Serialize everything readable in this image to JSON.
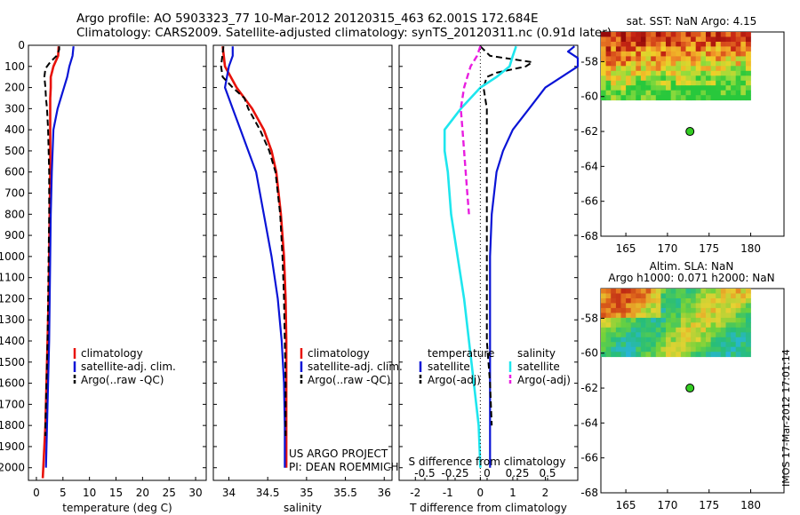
{
  "header": {
    "line1": "Argo profile: AO 5903323_77 10-Mar-2012 20120315_463 62.001S 172.684E",
    "line2": "Climatology: CARS2009. Satellite-adjusted climatology: synTS_20120311.nc (0.91d later)"
  },
  "colors": {
    "climatology": "#e8120a",
    "satellite": "#0a14d6",
    "argo": "#000000",
    "sat_s": "#1ee6ee",
    "argo_s": "#e81ee0",
    "marker": "#33cc22"
  },
  "chart_data": [
    {
      "type": "line",
      "id": "temperature",
      "xlabel": "temperature (deg C)",
      "ylabel": "",
      "xlim": [
        -1.5,
        32
      ],
      "ylim": [
        2060,
        0
      ],
      "xticks": [
        0,
        5,
        10,
        15,
        20,
        25,
        30
      ],
      "yticks": [
        0,
        100,
        200,
        300,
        400,
        500,
        600,
        700,
        800,
        900,
        1000,
        1100,
        1200,
        1300,
        1400,
        1500,
        1600,
        1700,
        1800,
        1900,
        2000
      ],
      "legend": [
        "climatology",
        "satellite-adj. clim.",
        "Argo(..raw -QC)"
      ],
      "series": [
        {
          "style": "clim",
          "depth": [
            5,
            50,
            100,
            150,
            200,
            250,
            300,
            400,
            600,
            800,
            1000,
            1200,
            1400,
            1600,
            1800,
            2000,
            2050
          ],
          "values": [
            4.2,
            4.1,
            3.2,
            2.7,
            2.7,
            2.6,
            2.6,
            2.6,
            2.6,
            2.5,
            2.4,
            2.3,
            2.1,
            1.9,
            1.7,
            1.3,
            1.2
          ]
        },
        {
          "style": "sat",
          "depth": [
            5,
            50,
            100,
            150,
            200,
            250,
            300,
            400,
            600,
            800,
            1000,
            1200,
            1400,
            1600,
            1800,
            2000
          ],
          "values": [
            7,
            6.8,
            6.2,
            5.8,
            5.2,
            4.6,
            4.0,
            3.2,
            2.9,
            2.7,
            2.6,
            2.5,
            2.4,
            2.2,
            2.0,
            1.8
          ]
        },
        {
          "style": "argo",
          "depth": [
            5,
            20,
            50,
            80,
            110,
            150,
            200,
            250,
            300,
            400,
            600,
            800,
            1000,
            1200,
            1400,
            1600,
            1800,
            1850
          ],
          "values": [
            4.3,
            4.3,
            3.8,
            2.6,
            1.7,
            1.5,
            1.7,
            1.8,
            2.0,
            2.2,
            2.4,
            2.4,
            2.3,
            2.2,
            2.1,
            1.9,
            1.7,
            1.7
          ]
        }
      ]
    },
    {
      "type": "line",
      "id": "salinity",
      "xlabel": "salinity",
      "ylabel": "",
      "xlim": [
        33.8,
        36.1
      ],
      "ylim": [
        2060,
        0
      ],
      "xticks": [
        "34",
        "34.5",
        "35",
        "35.5",
        "36"
      ],
      "legend": [
        "climatology",
        "satellite-adj. clim.",
        "Argo(..raw -QC)"
      ],
      "annotation": [
        "US ARGO PROJECT",
        "PI: DEAN ROEMMICH"
      ],
      "series": [
        {
          "style": "clim",
          "depth": [
            5,
            100,
            200,
            300,
            400,
            500,
            600,
            800,
            1000,
            1200,
            1400,
            1600,
            1800,
            2000
          ],
          "values": [
            33.92,
            33.95,
            34.1,
            34.3,
            34.45,
            34.55,
            34.61,
            34.67,
            34.71,
            34.73,
            34.74,
            34.74,
            34.74,
            34.74
          ]
        },
        {
          "style": "sat",
          "depth": [
            5,
            50,
            100,
            200,
            300,
            400,
            500,
            600,
            800,
            1000,
            1200,
            1400,
            1600,
            1800,
            2000
          ],
          "values": [
            34.05,
            34.05,
            34.0,
            33.95,
            34.05,
            34.15,
            34.25,
            34.35,
            34.45,
            34.55,
            34.63,
            34.68,
            34.71,
            34.72,
            34.72
          ]
        },
        {
          "style": "argo",
          "depth": [
            5,
            100,
            150,
            200,
            250,
            300,
            400,
            500,
            600,
            800,
            1000,
            1200,
            1400,
            1600,
            1800,
            1850
          ],
          "values": [
            33.93,
            33.9,
            33.92,
            34.05,
            34.2,
            34.25,
            34.4,
            34.52,
            34.6,
            34.66,
            34.69,
            34.71,
            34.72,
            34.73,
            34.73,
            34.73
          ]
        }
      ]
    },
    {
      "type": "line",
      "id": "difference",
      "xlabel": "T difference from climatology",
      "title": "S difference from climatology",
      "xlim": [
        -2.5,
        3
      ],
      "ylim": [
        2060,
        0
      ],
      "xticks": [
        "-2",
        "-1",
        "0",
        "1",
        "2"
      ],
      "top_ticks": [
        "-0.5",
        "-0.25",
        "0",
        "0.25",
        "0.5"
      ],
      "legend_groups": [
        {
          "title": "temperature",
          "items": [
            "satellite",
            "Argo(-adj)"
          ]
        },
        {
          "title": "salinity",
          "items": [
            "satellite",
            "Argo(-adj)"
          ]
        }
      ],
      "series": [
        {
          "style": "sat",
          "depth": [
            5,
            30,
            60,
            100,
            200,
            300,
            400,
            500,
            600,
            800,
            1000,
            1200,
            1400,
            1600,
            1800,
            1900,
            2000
          ],
          "values": [
            2.9,
            2.7,
            3.0,
            3.0,
            2.0,
            1.5,
            1.0,
            0.7,
            0.5,
            0.35,
            0.3,
            0.3,
            0.3,
            0.3,
            0.3,
            0.3,
            0.3
          ]
        },
        {
          "style": "argo",
          "depth": [
            5,
            50,
            80,
            100,
            130,
            150,
            200,
            300,
            400,
            600,
            800,
            1000,
            1200,
            1400,
            1600,
            1800
          ],
          "values": [
            0.0,
            0.3,
            1.6,
            1.4,
            0.5,
            0.2,
            0.1,
            0.2,
            0.2,
            0.2,
            0.2,
            0.2,
            0.2,
            0.2,
            0.3,
            0.35
          ]
        },
        {
          "style": "sat_s",
          "depth": [
            5,
            50,
            100,
            150,
            200,
            300,
            400,
            500,
            600,
            800,
            1000,
            1200,
            1400,
            1600,
            1800,
            2000
          ],
          "values": [
            1.1,
            1.0,
            0.9,
            0.5,
            0.0,
            -0.6,
            -1.1,
            -1.1,
            -1.0,
            -0.9,
            -0.7,
            -0.5,
            -0.35,
            -0.2,
            -0.05,
            0.0
          ]
        },
        {
          "style": "argo_s",
          "depth": [
            5,
            50,
            100,
            150,
            200,
            300,
            400,
            500,
            600,
            700,
            800
          ],
          "values": [
            0.0,
            -0.1,
            -0.3,
            -0.4,
            -0.5,
            -0.6,
            -0.55,
            -0.5,
            -0.45,
            -0.4,
            -0.35
          ]
        }
      ]
    },
    {
      "type": "heatmap",
      "id": "sst",
      "title": "sat. SST: NaN Argo: 4.15",
      "xlim": [
        162,
        184
      ],
      "ylim": [
        -68,
        -56.3
      ],
      "xticks": [
        "165",
        "170",
        "175",
        "180"
      ],
      "yticks": [
        "-58",
        "-60",
        "-62",
        "-64",
        "-66",
        "-68"
      ],
      "argo_point": [
        172.7,
        -62.0
      ]
    },
    {
      "type": "heatmap",
      "id": "sla",
      "title": [
        "Altim. SLA: NaN",
        "Argo h1000: 0.071 h2000: NaN"
      ],
      "xlim": [
        162,
        184
      ],
      "ylim": [
        -68,
        -56.3
      ],
      "xticks": [
        "165",
        "170",
        "175",
        "180"
      ],
      "yticks": [
        "-58",
        "-60",
        "-62",
        "-64",
        "-66",
        "-68"
      ],
      "argo_point": [
        172.7,
        -62.0
      ]
    }
  ],
  "footer": {
    "stamp": "IMOS 17-Mar-2012 17:01:14"
  }
}
